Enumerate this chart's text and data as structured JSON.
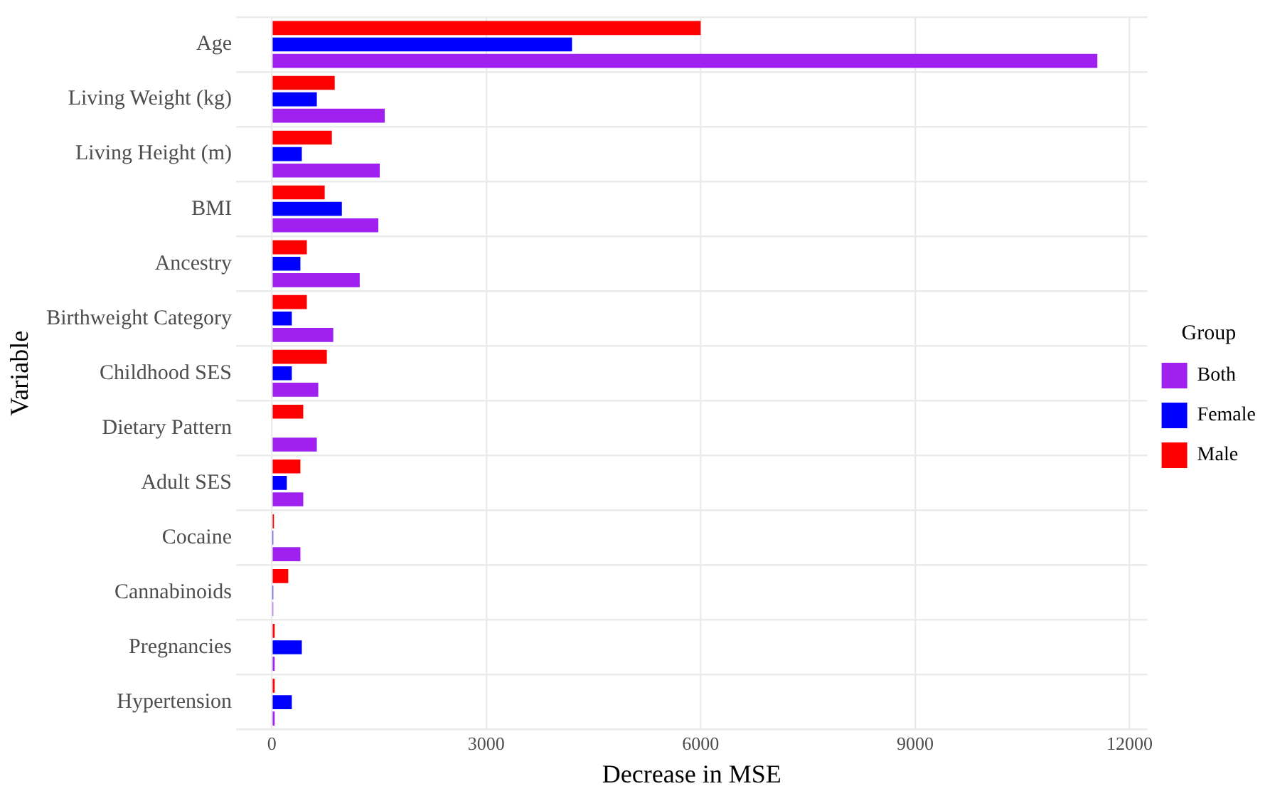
{
  "chart_data": {
    "type": "bar",
    "orientation": "horizontal",
    "xlabel": "Decrease in MSE",
    "ylabel": "Variable",
    "legend_title": "Group",
    "legend": "right",
    "grid": true,
    "categories": [
      "Age",
      "Living Weight (kg)",
      "Living Height (m)",
      "BMI",
      "Ancestry",
      "Birthweight Category",
      "Childhood SES",
      "Dietary Pattern",
      "Adult SES",
      "Cocaine",
      "Cannabinoids",
      "Pregnancies",
      "Hypertension"
    ],
    "xlim": [
      -500,
      12250
    ],
    "xticks": [
      0,
      3000,
      6000,
      9000,
      12000
    ],
    "series": [
      {
        "name": "Both",
        "color": "#a020f0",
        "values": [
          11550,
          1580,
          1510,
          1490,
          1230,
          860,
          650,
          630,
          440,
          400,
          20,
          40,
          40
        ]
      },
      {
        "name": "Female",
        "color": "#0000ff",
        "values": [
          4200,
          630,
          420,
          980,
          400,
          280,
          280,
          null,
          210,
          20,
          20,
          420,
          280
        ]
      },
      {
        "name": "Male",
        "color": "#ff0000",
        "values": [
          6000,
          880,
          840,
          740,
          490,
          490,
          770,
          440,
          400,
          30,
          230,
          40,
          40
        ]
      }
    ]
  }
}
